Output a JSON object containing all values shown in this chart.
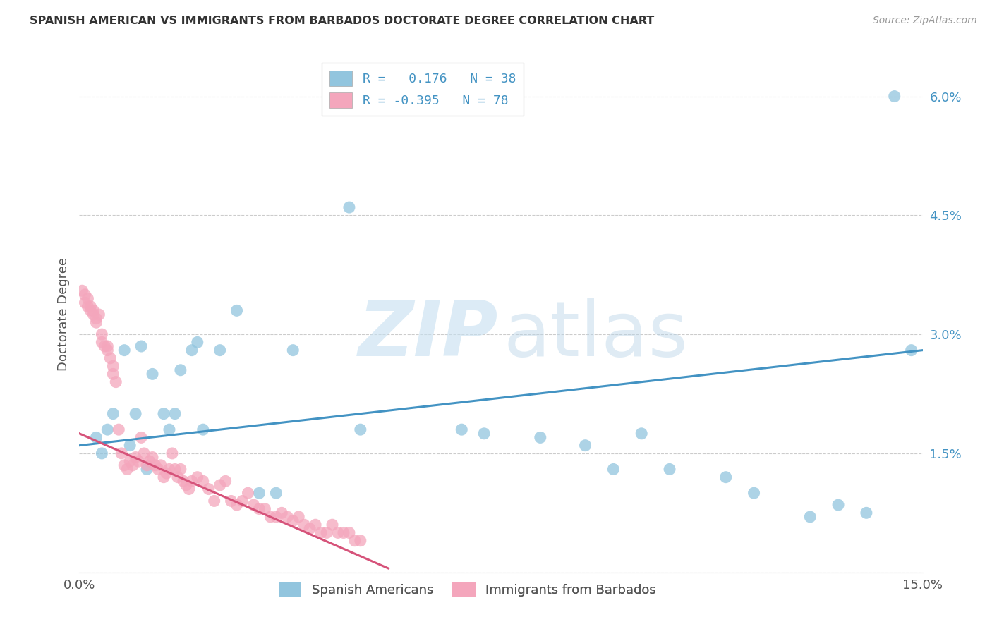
{
  "title": "SPANISH AMERICAN VS IMMIGRANTS FROM BARBADOS DOCTORATE DEGREE CORRELATION CHART",
  "source": "Source: ZipAtlas.com",
  "ylabel": "Doctorate Degree",
  "xlim": [
    0.0,
    15.0
  ],
  "ylim": [
    0.0,
    6.5
  ],
  "yticks": [
    0.0,
    1.5,
    3.0,
    4.5,
    6.0
  ],
  "ytick_labels": [
    "",
    "1.5%",
    "3.0%",
    "4.5%",
    "6.0%"
  ],
  "blue_color": "#92c5de",
  "pink_color": "#f4a6bc",
  "blue_line_color": "#4393c3",
  "pink_line_color": "#d6537a",
  "background_color": "#ffffff",
  "blue_x": [
    0.3,
    0.4,
    0.5,
    0.6,
    0.8,
    0.9,
    1.0,
    1.1,
    1.2,
    1.3,
    1.5,
    1.6,
    1.7,
    1.8,
    2.0,
    2.1,
    2.2,
    2.5,
    2.8,
    3.2,
    3.5,
    3.8,
    4.8,
    5.0,
    6.8,
    7.2,
    8.2,
    9.0,
    9.5,
    10.0,
    10.5,
    11.5,
    12.0,
    13.0,
    13.5,
    14.0,
    14.5,
    14.8
  ],
  "blue_y": [
    1.7,
    1.5,
    1.8,
    2.0,
    2.8,
    1.6,
    2.0,
    2.85,
    1.3,
    2.5,
    2.0,
    1.8,
    2.0,
    2.55,
    2.8,
    2.9,
    1.8,
    2.8,
    3.3,
    1.0,
    1.0,
    2.8,
    4.6,
    1.8,
    1.8,
    1.75,
    1.7,
    1.6,
    1.3,
    1.75,
    1.3,
    1.2,
    1.0,
    0.7,
    0.85,
    0.75,
    6.0,
    2.8
  ],
  "pink_x": [
    0.05,
    0.1,
    0.1,
    0.15,
    0.15,
    0.2,
    0.2,
    0.25,
    0.25,
    0.3,
    0.3,
    0.35,
    0.4,
    0.4,
    0.45,
    0.5,
    0.5,
    0.55,
    0.6,
    0.6,
    0.65,
    0.7,
    0.75,
    0.8,
    0.85,
    0.9,
    0.95,
    1.0,
    1.05,
    1.1,
    1.15,
    1.2,
    1.25,
    1.3,
    1.35,
    1.4,
    1.45,
    1.5,
    1.55,
    1.6,
    1.65,
    1.7,
    1.75,
    1.8,
    1.85,
    1.9,
    1.95,
    2.0,
    2.1,
    2.2,
    2.3,
    2.4,
    2.5,
    2.6,
    2.7,
    2.8,
    2.9,
    3.0,
    3.1,
    3.2,
    3.3,
    3.4,
    3.5,
    3.6,
    3.7,
    3.8,
    3.9,
    4.0,
    4.1,
    4.2,
    4.3,
    4.4,
    4.5,
    4.6,
    4.7,
    4.8,
    4.9,
    5.0
  ],
  "pink_y": [
    3.55,
    3.4,
    3.5,
    3.35,
    3.45,
    3.3,
    3.35,
    3.25,
    3.3,
    3.15,
    3.2,
    3.25,
    2.9,
    3.0,
    2.85,
    2.8,
    2.85,
    2.7,
    2.6,
    2.5,
    2.4,
    1.8,
    1.5,
    1.35,
    1.3,
    1.4,
    1.35,
    1.45,
    1.4,
    1.7,
    1.5,
    1.35,
    1.4,
    1.45,
    1.35,
    1.3,
    1.35,
    1.2,
    1.25,
    1.3,
    1.5,
    1.3,
    1.2,
    1.3,
    1.15,
    1.1,
    1.05,
    1.15,
    1.2,
    1.15,
    1.05,
    0.9,
    1.1,
    1.15,
    0.9,
    0.85,
    0.9,
    1.0,
    0.85,
    0.8,
    0.8,
    0.7,
    0.7,
    0.75,
    0.7,
    0.65,
    0.7,
    0.6,
    0.55,
    0.6,
    0.5,
    0.5,
    0.6,
    0.5,
    0.5,
    0.5,
    0.4,
    0.4
  ],
  "blue_line_x0": 0.0,
  "blue_line_y0": 1.6,
  "blue_line_x1": 15.0,
  "blue_line_y1": 2.8,
  "pink_line_x0": 0.0,
  "pink_line_y0": 1.75,
  "pink_line_x1": 5.5,
  "pink_line_y1": 0.05
}
